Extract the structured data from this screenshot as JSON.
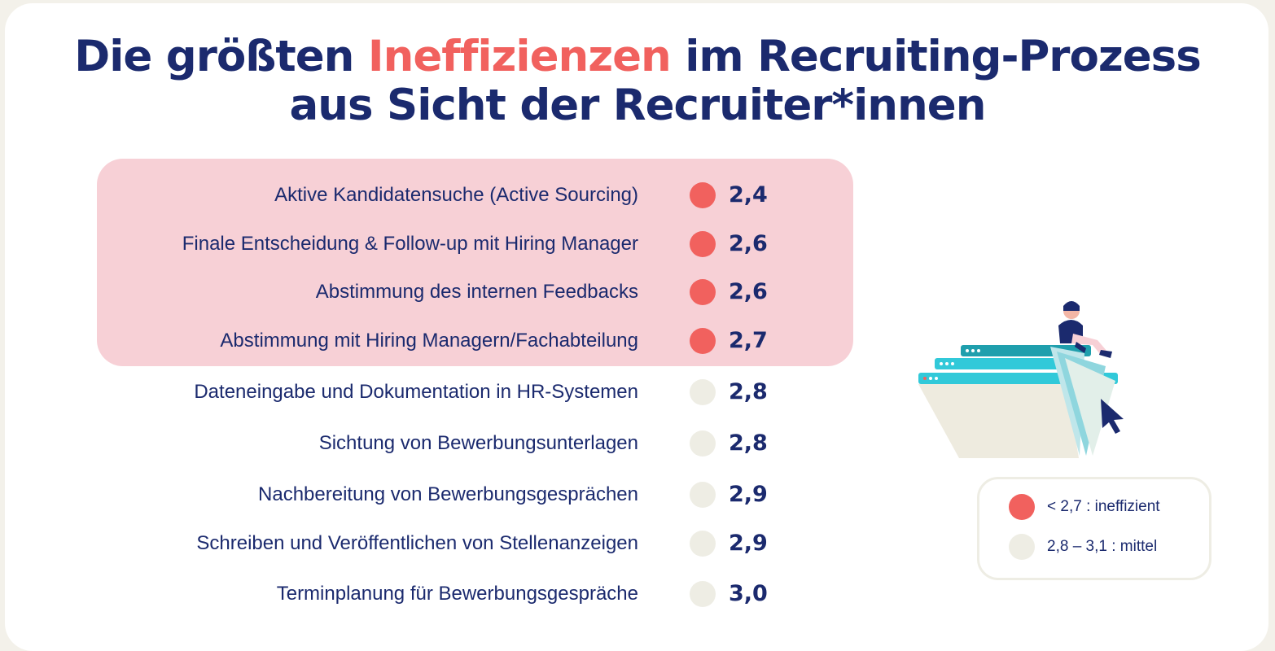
{
  "title": {
    "line1_pre": "Die größten ",
    "line1_hl": "Ineffizienzen",
    "line1_post": " im Recruiting-Prozess",
    "line2": "aus Sicht der Recruiter*innen"
  },
  "colors": {
    "ineffizient": "#f1615e",
    "mittel": "#eeede4",
    "text": "#1b2a6e",
    "highlight": "#f7d0d6"
  },
  "chart_data": {
    "type": "table",
    "categories": [
      "Aktive Kandidatensuche (Active Sourcing)",
      "Finale Entscheidung & Follow-up mit Hiring Manager",
      "Abstimmung des internen Feedbacks",
      "Abstimmung mit Hiring Managern/Fachabteilung",
      "Dateneingabe und Dokumentation in HR-Systemen",
      "Sichtung von Bewerbungsunterlagen",
      "Nachbereitung von Bewerbungsgesprächen",
      "Schreiben und Veröffentlichen von Stellenanzeigen",
      "Terminplanung für Bewerbungsgespräche"
    ],
    "values": [
      "2,4",
      "2,6",
      "2,6",
      "2,7",
      "2,8",
      "2,8",
      "2,9",
      "2,9",
      "3,0"
    ],
    "status": [
      "ineffizient",
      "ineffizient",
      "ineffizient",
      "ineffizient",
      "mittel",
      "mittel",
      "mittel",
      "mittel",
      "mittel"
    ]
  },
  "legend": [
    {
      "label": "< 2,7 : ineffizient",
      "status": "ineffizient"
    },
    {
      "label": "2,8 – 3,1 : mittel",
      "status": "mittel"
    }
  ]
}
